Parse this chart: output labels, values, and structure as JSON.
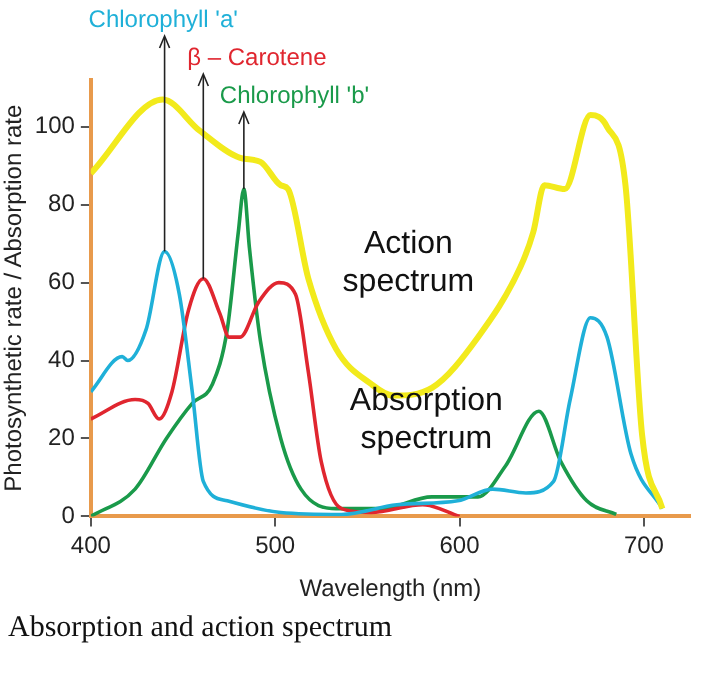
{
  "chart_data": {
    "type": "line",
    "xlabel": "Wavelength (nm)",
    "ylabel": "Photosynthetic rate / Absorption rate",
    "xlim": [
      400,
      725
    ],
    "xticks": [
      400,
      500,
      600,
      700
    ],
    "ylim": [
      0,
      112
    ],
    "yticks": [
      0,
      20,
      40,
      60,
      80,
      100
    ],
    "grid": false,
    "legend": false,
    "marker": "none",
    "line_style": "solid",
    "series": [
      {
        "color": "#f2ea1c",
        "x": [
          400,
          439,
          459,
          481,
          492,
          503,
          507,
          518,
          533,
          552,
          564,
          585,
          610,
          633,
          640,
          646,
          657,
          671,
          680,
          690,
          699,
          710
        ],
        "values": [
          88,
          107,
          99,
          92,
          91,
          85,
          84,
          61,
          43,
          34,
          31,
          33,
          46,
          64,
          73,
          85,
          84,
          103,
          100,
          85,
          21,
          2
        ]
      },
      {
        "name": "Chlorophyll 'a'",
        "color": "#1fb0d8",
        "x": [
          400,
          417,
          420,
          430,
          440,
          448,
          455,
          461,
          474,
          503,
          536,
          566,
          599,
          618,
          636,
          651,
          660,
          671,
          680,
          693,
          710
        ],
        "values": [
          32,
          41,
          40,
          48,
          68,
          57,
          32,
          9,
          4,
          1,
          0.5,
          3,
          4,
          7,
          6,
          9,
          30,
          51,
          46,
          16,
          2
        ]
      },
      {
        "name": "β – Carotene",
        "color": "#e0262f",
        "x": [
          400,
          424,
          431,
          437,
          444,
          453,
          461,
          470,
          475,
          481,
          491,
          502,
          511,
          518,
          525,
          536,
          552,
          580,
          600
        ],
        "values": [
          25,
          30,
          29,
          25,
          32,
          53,
          61,
          52,
          46,
          46,
          55,
          60,
          57,
          37,
          14,
          2,
          1,
          3,
          0
        ]
      },
      {
        "name": "Chlorophyll 'b'",
        "color": "#1a9a4a",
        "x": [
          400,
          424,
          441,
          455,
          466,
          474,
          480,
          483,
          486,
          492,
          503,
          514,
          533,
          558,
          585,
          610,
          625,
          643,
          655,
          669,
          685
        ],
        "values": [
          0,
          7,
          20,
          29,
          34,
          48,
          73,
          84,
          69,
          45,
          20,
          7,
          2,
          2,
          5,
          5,
          13,
          27,
          14,
          4,
          0.5
        ]
      }
    ],
    "annotations": [
      "Action spectrum",
      "Absorption spectrum",
      "Absorption and action spectrum"
    ]
  }
}
